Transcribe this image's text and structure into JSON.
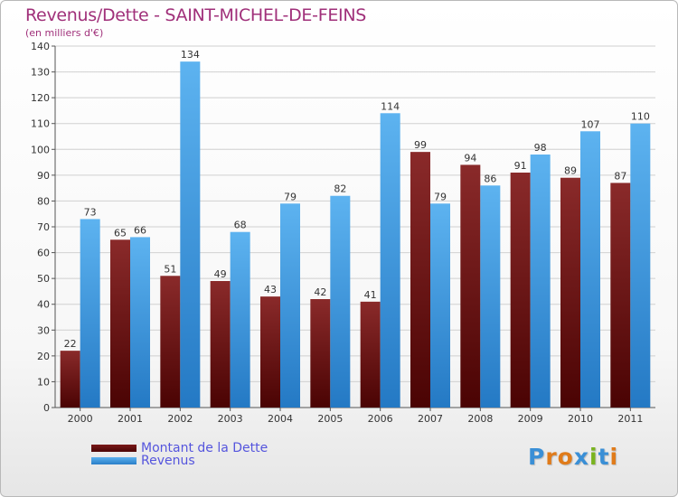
{
  "title": "Revenus/Dette - SAINT-MICHEL-DE-FEINS",
  "subtitle": "(en milliers d'€)",
  "colors": {
    "dette": "#7a1818",
    "revenus": "#3a95e0",
    "title": "#a0307a",
    "legend_text": "#5555dd"
  },
  "legend": [
    {
      "label": "Montant de la Dette",
      "color": "#6b0f0f"
    },
    {
      "label": "Revenus",
      "color": "#3a95e0"
    }
  ],
  "logo": {
    "text": "Proxiti",
    "letters": [
      "P",
      "r",
      "o",
      "x",
      "i",
      "t",
      "i"
    ],
    "colors": [
      "#3a8fd6",
      "#e07b1a",
      "#e07b1a",
      "#3a8fd6",
      "#7ab320",
      "#3a8fd6",
      "#e07b1a"
    ]
  },
  "chart_data": {
    "type": "bar",
    "title": "Revenus/Dette - SAINT-MICHEL-DE-FEINS",
    "subtitle": "(en milliers d'€)",
    "categories": [
      "2000",
      "2001",
      "2002",
      "2003",
      "2004",
      "2005",
      "2006",
      "2007",
      "2008",
      "2009",
      "2010",
      "2011"
    ],
    "series": [
      {
        "name": "Montant de la Dette",
        "values": [
          22,
          65,
          51,
          49,
          43,
          42,
          41,
          99,
          94,
          91,
          89,
          87
        ]
      },
      {
        "name": "Revenus",
        "values": [
          73,
          66,
          134,
          68,
          79,
          82,
          114,
          79,
          86,
          98,
          107,
          110
        ]
      }
    ],
    "ylim": [
      0,
      140
    ],
    "yticks": [
      0,
      10,
      20,
      30,
      40,
      50,
      60,
      70,
      80,
      90,
      100,
      110,
      120,
      130,
      140
    ],
    "grid": true,
    "legend_position": "bottom-left"
  }
}
